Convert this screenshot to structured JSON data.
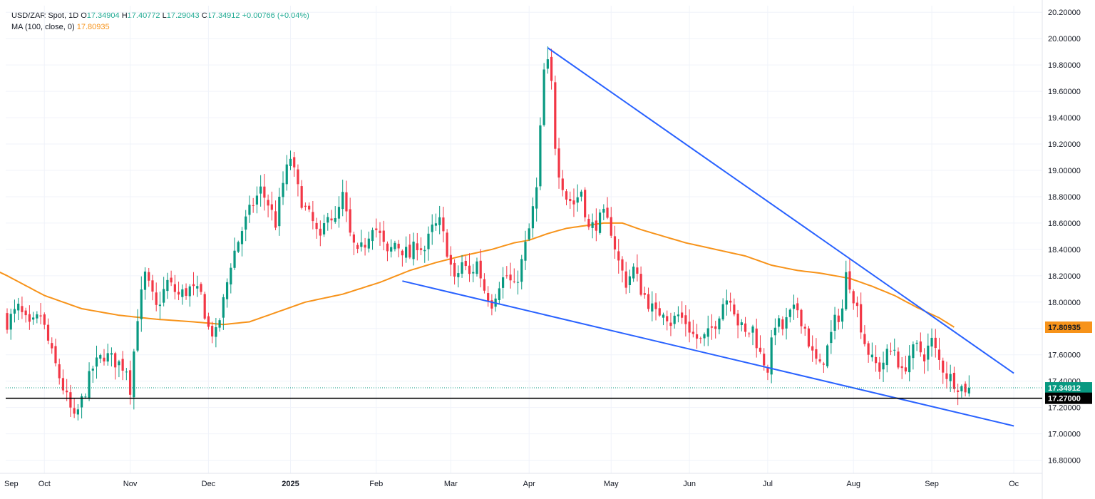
{
  "legend": {
    "symbol": "USD/ZAR Spot, 1D",
    "open_label": "O",
    "open": "17.34904",
    "high_label": "H",
    "high": "17.40772",
    "low_label": "L",
    "low": "17.29043",
    "close_label": "C",
    "close": "17.34912",
    "change": "+0.00766 (+0.04%)",
    "ma_label": "MA (100, close, 0)",
    "ma_value": "17.80935"
  },
  "colors": {
    "up": "#089981",
    "down": "#f23645",
    "ma": "#f7931a",
    "trendline": "#2962ff",
    "support": "#000000",
    "grid": "#f0f3fa",
    "price_badge": "#089981",
    "ma_badge": "#f7931a"
  },
  "chart_data": {
    "type": "candlestick",
    "title": "USD/ZAR Spot, 1D",
    "ylim": [
      16.7,
      20.25
    ],
    "y_ticks": [
      "16.80000",
      "17.00000",
      "17.20000",
      "17.40000",
      "17.60000",
      "17.80000",
      "18.00000",
      "18.20000",
      "18.40000",
      "18.60000",
      "18.80000",
      "19.00000",
      "19.20000",
      "19.40000",
      "19.60000",
      "19.80000",
      "20.00000",
      "20.20000"
    ],
    "x_ticks": [
      {
        "label": "Sep",
        "bar": -11,
        "bold": false
      },
      {
        "label": "Oct",
        "bar": 10,
        "bold": false
      },
      {
        "label": "Nov",
        "bar": 33,
        "bold": false
      },
      {
        "label": "Dec",
        "bar": 54,
        "bold": false
      },
      {
        "label": "2025",
        "bar": 76,
        "bold": true
      },
      {
        "label": "Feb",
        "bar": 99,
        "bold": false
      },
      {
        "label": "Mar",
        "bar": 119,
        "bold": false
      },
      {
        "label": "Apr",
        "bar": 140,
        "bold": false
      },
      {
        "label": "May",
        "bar": 162,
        "bold": false
      },
      {
        "label": "Jun",
        "bar": 183,
        "bold": false
      },
      {
        "label": "Jul",
        "bar": 204,
        "bold": false
      },
      {
        "label": "Aug",
        "bar": 227,
        "bold": false
      },
      {
        "label": "Sep",
        "bar": 248,
        "bold": false
      },
      {
        "label": "Oc",
        "bar": 270,
        "bold": false
      }
    ],
    "close_anchors": [
      [
        0,
        17.85
      ],
      [
        3,
        17.95
      ],
      [
        6,
        17.8
      ],
      [
        9,
        17.9
      ],
      [
        12,
        17.6
      ],
      [
        15,
        17.35
      ],
      [
        18,
        17.1
      ],
      [
        20,
        17.25
      ],
      [
        23,
        17.5
      ],
      [
        26,
        17.6
      ],
      [
        29,
        17.55
      ],
      [
        32,
        17.5
      ],
      [
        33,
        17.35
      ],
      [
        35,
        17.9
      ],
      [
        37,
        18.2
      ],
      [
        40,
        17.95
      ],
      [
        43,
        18.15
      ],
      [
        46,
        18.05
      ],
      [
        49,
        18.1
      ],
      [
        52,
        18.05
      ],
      [
        54,
        17.8
      ],
      [
        56,
        17.75
      ],
      [
        58,
        18.0
      ],
      [
        60,
        18.3
      ],
      [
        63,
        18.55
      ],
      [
        66,
        18.75
      ],
      [
        68,
        18.85
      ],
      [
        70,
        18.75
      ],
      [
        72,
        18.6
      ],
      [
        74,
        18.9
      ],
      [
        76,
        19.1
      ],
      [
        78,
        18.85
      ],
      [
        80,
        18.7
      ],
      [
        82,
        18.6
      ],
      [
        84,
        18.45
      ],
      [
        86,
        18.7
      ],
      [
        88,
        18.6
      ],
      [
        90,
        18.8
      ],
      [
        92,
        18.5
      ],
      [
        94,
        18.35
      ],
      [
        96,
        18.45
      ],
      [
        98,
        18.6
      ],
      [
        100,
        18.5
      ],
      [
        102,
        18.35
      ],
      [
        104,
        18.45
      ],
      [
        106,
        18.4
      ],
      [
        108,
        18.35
      ],
      [
        110,
        18.45
      ],
      [
        112,
        18.4
      ],
      [
        114,
        18.55
      ],
      [
        116,
        18.6
      ],
      [
        118,
        18.4
      ],
      [
        120,
        18.15
      ],
      [
        122,
        18.3
      ],
      [
        124,
        18.2
      ],
      [
        126,
        18.3
      ],
      [
        128,
        18.1
      ],
      [
        130,
        18.0
      ],
      [
        132,
        18.15
      ],
      [
        134,
        18.2
      ],
      [
        136,
        18.1
      ],
      [
        138,
        18.3
      ],
      [
        140,
        18.55
      ],
      [
        142,
        18.85
      ],
      [
        144,
        19.75
      ],
      [
        145,
        19.8
      ],
      [
        146,
        19.65
      ],
      [
        147,
        19.2
      ],
      [
        148,
        19.0
      ],
      [
        150,
        18.8
      ],
      [
        152,
        18.75
      ],
      [
        154,
        18.85
      ],
      [
        156,
        18.55
      ],
      [
        158,
        18.6
      ],
      [
        160,
        18.65
      ],
      [
        162,
        18.55
      ],
      [
        164,
        18.3
      ],
      [
        166,
        18.15
      ],
      [
        168,
        18.25
      ],
      [
        170,
        18.1
      ],
      [
        172,
        18.0
      ],
      [
        174,
        17.9
      ],
      [
        176,
        17.95
      ],
      [
        178,
        17.85
      ],
      [
        180,
        17.9
      ],
      [
        182,
        17.85
      ],
      [
        184,
        17.75
      ],
      [
        186,
        17.7
      ],
      [
        188,
        17.75
      ],
      [
        190,
        17.85
      ],
      [
        192,
        18.0
      ],
      [
        194,
        18.05
      ],
      [
        196,
        17.85
      ],
      [
        198,
        17.75
      ],
      [
        200,
        17.8
      ],
      [
        202,
        17.6
      ],
      [
        204,
        17.5
      ],
      [
        206,
        17.85
      ],
      [
        208,
        17.8
      ],
      [
        210,
        17.9
      ],
      [
        212,
        17.95
      ],
      [
        214,
        17.8
      ],
      [
        216,
        17.6
      ],
      [
        218,
        17.5
      ],
      [
        220,
        17.65
      ],
      [
        222,
        17.85
      ],
      [
        224,
        17.95
      ],
      [
        225,
        18.2
      ],
      [
        226,
        18.15
      ],
      [
        228,
        17.95
      ],
      [
        230,
        17.7
      ],
      [
        232,
        17.55
      ],
      [
        234,
        17.5
      ],
      [
        236,
        17.6
      ],
      [
        238,
        17.65
      ],
      [
        240,
        17.45
      ],
      [
        242,
        17.6
      ],
      [
        244,
        17.65
      ],
      [
        246,
        17.6
      ],
      [
        248,
        17.7
      ],
      [
        250,
        17.55
      ],
      [
        252,
        17.45
      ],
      [
        254,
        17.4
      ],
      [
        256,
        17.35
      ],
      [
        258,
        17.34912
      ]
    ],
    "ma100_anchors": [
      [
        -11,
        18.35
      ],
      [
        0,
        18.2
      ],
      [
        10,
        18.05
      ],
      [
        20,
        17.95
      ],
      [
        30,
        17.9
      ],
      [
        40,
        17.87
      ],
      [
        50,
        17.85
      ],
      [
        58,
        17.83
      ],
      [
        65,
        17.85
      ],
      [
        72,
        17.92
      ],
      [
        80,
        18.0
      ],
      [
        90,
        18.06
      ],
      [
        100,
        18.15
      ],
      [
        108,
        18.24
      ],
      [
        115,
        18.3
      ],
      [
        122,
        18.35
      ],
      [
        130,
        18.4
      ],
      [
        136,
        18.45
      ],
      [
        140,
        18.47
      ],
      [
        145,
        18.52
      ],
      [
        150,
        18.56
      ],
      [
        155,
        18.58
      ],
      [
        160,
        18.6
      ],
      [
        165,
        18.6
      ],
      [
        170,
        18.55
      ],
      [
        176,
        18.5
      ],
      [
        182,
        18.45
      ],
      [
        190,
        18.4
      ],
      [
        198,
        18.35
      ],
      [
        205,
        18.28
      ],
      [
        212,
        18.24
      ],
      [
        218,
        18.22
      ],
      [
        222,
        18.2
      ],
      [
        226,
        18.18
      ],
      [
        232,
        18.12
      ],
      [
        238,
        18.05
      ],
      [
        244,
        17.96
      ],
      [
        250,
        17.88
      ],
      [
        254,
        17.81
      ]
    ],
    "trendlines": [
      {
        "from": [
          145,
          19.93
        ],
        "to": [
          270,
          17.46
        ]
      },
      {
        "from": [
          106,
          18.16
        ],
        "to": [
          270,
          17.06
        ]
      }
    ],
    "support": {
      "value": 17.27,
      "label": "17.27000"
    },
    "last_price": {
      "value": 17.34912,
      "label": "17.34912"
    },
    "ma_last": {
      "value": 17.80935,
      "label": "17.80935"
    },
    "last_bar": 258
  }
}
